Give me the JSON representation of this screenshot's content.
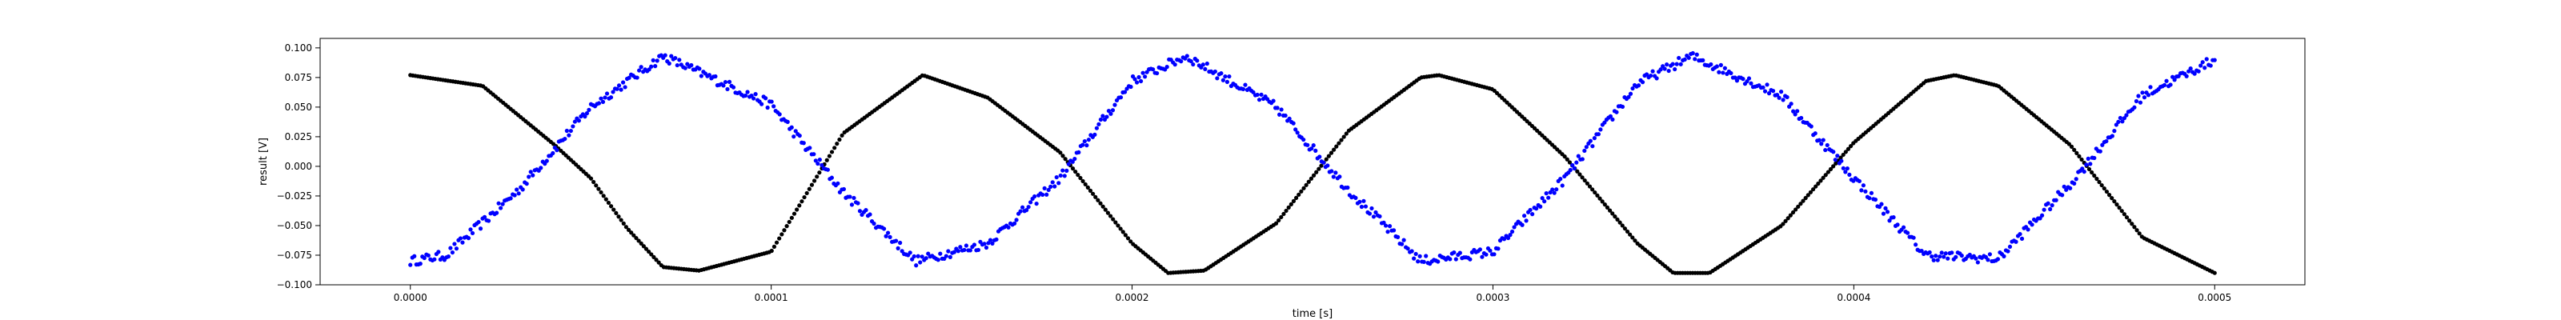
{
  "chart_data": {
    "type": "scatter",
    "title": "",
    "xlabel": "time [s]",
    "ylabel": "result [V]",
    "xlim": [
      -2.5e-05,
      0.000525
    ],
    "ylim": [
      -0.1,
      0.108
    ],
    "grid": false,
    "x_ticks": [
      {
        "value": 0.0,
        "label": "0.0000"
      },
      {
        "value": 0.0001,
        "label": "0.0001"
      },
      {
        "value": 0.0002,
        "label": "0.0002"
      },
      {
        "value": 0.0003,
        "label": "0.0003"
      },
      {
        "value": 0.0004,
        "label": "0.0004"
      },
      {
        "value": 0.0005,
        "label": "0.0005"
      }
    ],
    "y_ticks": [
      {
        "value": -0.1,
        "label": "−0.100"
      },
      {
        "value": -0.075,
        "label": "−0.075"
      },
      {
        "value": -0.05,
        "label": "−0.050"
      },
      {
        "value": -0.025,
        "label": "−0.025"
      },
      {
        "value": 0.0,
        "label": "0.000"
      },
      {
        "value": 0.025,
        "label": "0.025"
      },
      {
        "value": 0.05,
        "label": "0.050"
      },
      {
        "value": 0.075,
        "label": "0.075"
      },
      {
        "value": 0.1,
        "label": "0.100"
      }
    ],
    "series": [
      {
        "color": "#000000",
        "marker": "circle",
        "x_start": 0.0,
        "x_end": 0.0005,
        "n_points": 720,
        "x": [
          0.0,
          2e-05,
          4e-05,
          5e-05,
          6e-05,
          7e-05,
          8e-05,
          0.0001,
          0.00012,
          0.000142,
          0.00016,
          0.00018,
          0.0002,
          0.00021,
          0.00022,
          0.00024,
          0.00026,
          0.00028,
          0.000285,
          0.0003,
          0.00032,
          0.00034,
          0.00035,
          0.00036,
          0.00038,
          0.0004,
          0.00042,
          0.000428,
          0.00044,
          0.00046,
          0.00048,
          0.0005
        ],
        "y": [
          0.077,
          0.068,
          0.018,
          -0.01,
          -0.052,
          -0.085,
          -0.088,
          -0.072,
          0.028,
          0.077,
          0.058,
          0.012,
          -0.065,
          -0.09,
          -0.088,
          -0.048,
          0.03,
          0.075,
          0.077,
          0.065,
          0.008,
          -0.065,
          -0.09,
          -0.09,
          -0.05,
          0.02,
          0.072,
          0.077,
          0.068,
          0.018,
          -0.06,
          -0.09
        ]
      },
      {
        "color": "#0000ff",
        "marker": "circle",
        "noisy": true,
        "x_start": 0.0,
        "x_end": 0.0005,
        "n_points": 900,
        "x": [
          0.0,
          1e-05,
          3e-05,
          5e-05,
          7e-05,
          0.0001,
          0.00012,
          0.00014,
          0.00016,
          0.00018,
          0.0002,
          0.000215,
          0.00024,
          0.00026,
          0.00028,
          0.0003,
          0.00032,
          0.00034,
          0.000355,
          0.00038,
          0.0004,
          0.00042,
          0.00044,
          0.00046,
          0.00048,
          0.0005
        ],
        "y": [
          -0.08,
          -0.075,
          -0.02,
          0.05,
          0.093,
          0.052,
          -0.022,
          -0.08,
          -0.065,
          -0.01,
          0.072,
          0.093,
          0.05,
          -0.02,
          -0.08,
          -0.072,
          -0.01,
          0.07,
          0.093,
          0.06,
          -0.01,
          -0.075,
          -0.078,
          -0.015,
          0.06,
          0.09
        ]
      }
    ]
  }
}
